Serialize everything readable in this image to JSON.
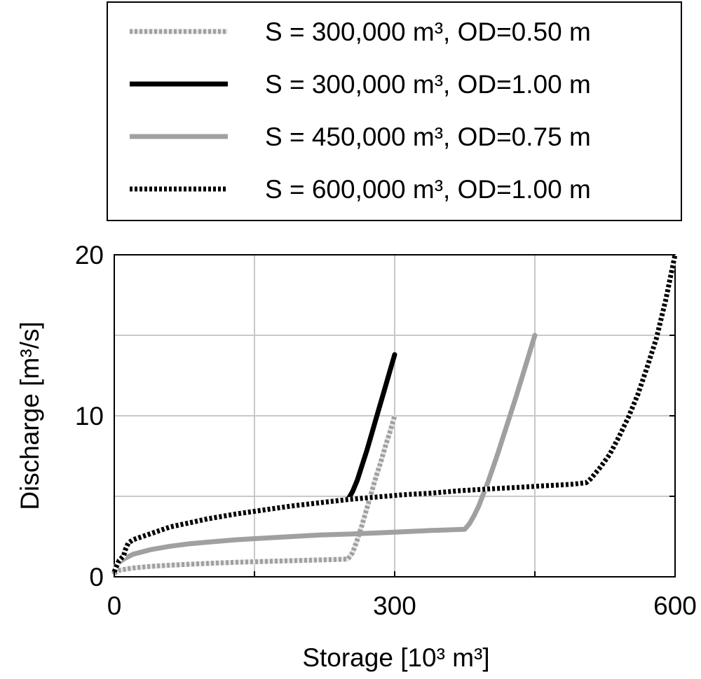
{
  "chart_data": {
    "type": "line",
    "xlabel": "Storage [10³ m³]",
    "ylabel": "Discharge [m³/s]",
    "xlim": [
      0,
      600
    ],
    "ylim": [
      0,
      20
    ],
    "xticks": [
      0,
      300,
      600
    ],
    "yticks": [
      0,
      10,
      20
    ],
    "xtick_labels": [
      "0",
      "300",
      "600"
    ],
    "ytick_labels": [
      "0",
      "10",
      "20"
    ],
    "grid": true,
    "legend_position": "top",
    "series": [
      {
        "name": "S = 300,000 m³, OD=0.50 m",
        "color": "#a0a0a0",
        "style": "dotted-thick",
        "x": [
          0,
          2,
          5,
          10,
          20,
          40,
          60,
          80,
          100,
          130,
          160,
          190,
          220,
          250,
          255,
          260,
          265,
          270,
          275,
          280,
          285,
          290,
          295,
          300
        ],
        "y": [
          0.2,
          0.3,
          0.4,
          0.45,
          0.55,
          0.65,
          0.72,
          0.78,
          0.83,
          0.9,
          0.95,
          1.0,
          1.05,
          1.1,
          1.5,
          2.3,
          3.2,
          4.2,
          5.2,
          6.2,
          7.1,
          8.1,
          9.0,
          10.0
        ]
      },
      {
        "name": "S = 300,000 m³, OD=1.00 m",
        "color": "#000000",
        "style": "solid-thick",
        "x": [
          0,
          2,
          5,
          10,
          12,
          15,
          20,
          30,
          40,
          60,
          80,
          100,
          130,
          160,
          190,
          220,
          250,
          255,
          260,
          265,
          270,
          275,
          280,
          285,
          290,
          295,
          300
        ],
        "y": [
          0.3,
          0.6,
          1.0,
          1.3,
          1.7,
          2.1,
          2.3,
          2.5,
          2.7,
          3.1,
          3.35,
          3.6,
          3.9,
          4.15,
          4.4,
          4.6,
          4.8,
          5.3,
          6.0,
          6.9,
          7.8,
          8.8,
          9.8,
          10.8,
          11.8,
          12.8,
          13.8
        ]
      },
      {
        "name": "S = 450,000 m³, OD=0.75 m",
        "color": "#a0a0a0",
        "style": "solid-thick",
        "x": [
          0,
          2,
          5,
          10,
          20,
          40,
          60,
          80,
          100,
          130,
          160,
          190,
          220,
          250,
          280,
          310,
          340,
          375,
          380,
          385,
          390,
          400,
          410,
          420,
          430,
          440,
          450
        ],
        "y": [
          0.3,
          0.7,
          0.9,
          1.1,
          1.4,
          1.7,
          1.9,
          2.05,
          2.15,
          2.3,
          2.4,
          2.5,
          2.6,
          2.65,
          2.72,
          2.8,
          2.88,
          2.95,
          3.3,
          3.8,
          4.4,
          5.9,
          7.6,
          9.4,
          11.2,
          13.1,
          15.0
        ]
      },
      {
        "name": "S = 600,000 m³, OD=1.00 m",
        "color": "#000000",
        "style": "dashed-thick",
        "x": [
          0,
          2,
          5,
          10,
          12,
          15,
          20,
          30,
          40,
          60,
          80,
          100,
          130,
          160,
          190,
          220,
          250,
          280,
          310,
          340,
          370,
          400,
          430,
          460,
          490,
          505,
          510,
          520,
          530,
          540,
          550,
          560,
          570,
          580,
          590,
          600
        ],
        "y": [
          0.3,
          0.6,
          1.0,
          1.3,
          1.7,
          2.1,
          2.3,
          2.5,
          2.7,
          3.1,
          3.35,
          3.6,
          3.9,
          4.15,
          4.4,
          4.6,
          4.8,
          4.95,
          5.1,
          5.2,
          5.35,
          5.45,
          5.55,
          5.65,
          5.75,
          5.85,
          6.1,
          6.8,
          7.6,
          8.7,
          9.9,
          11.3,
          13.0,
          14.8,
          17.2,
          20.0
        ]
      }
    ]
  }
}
